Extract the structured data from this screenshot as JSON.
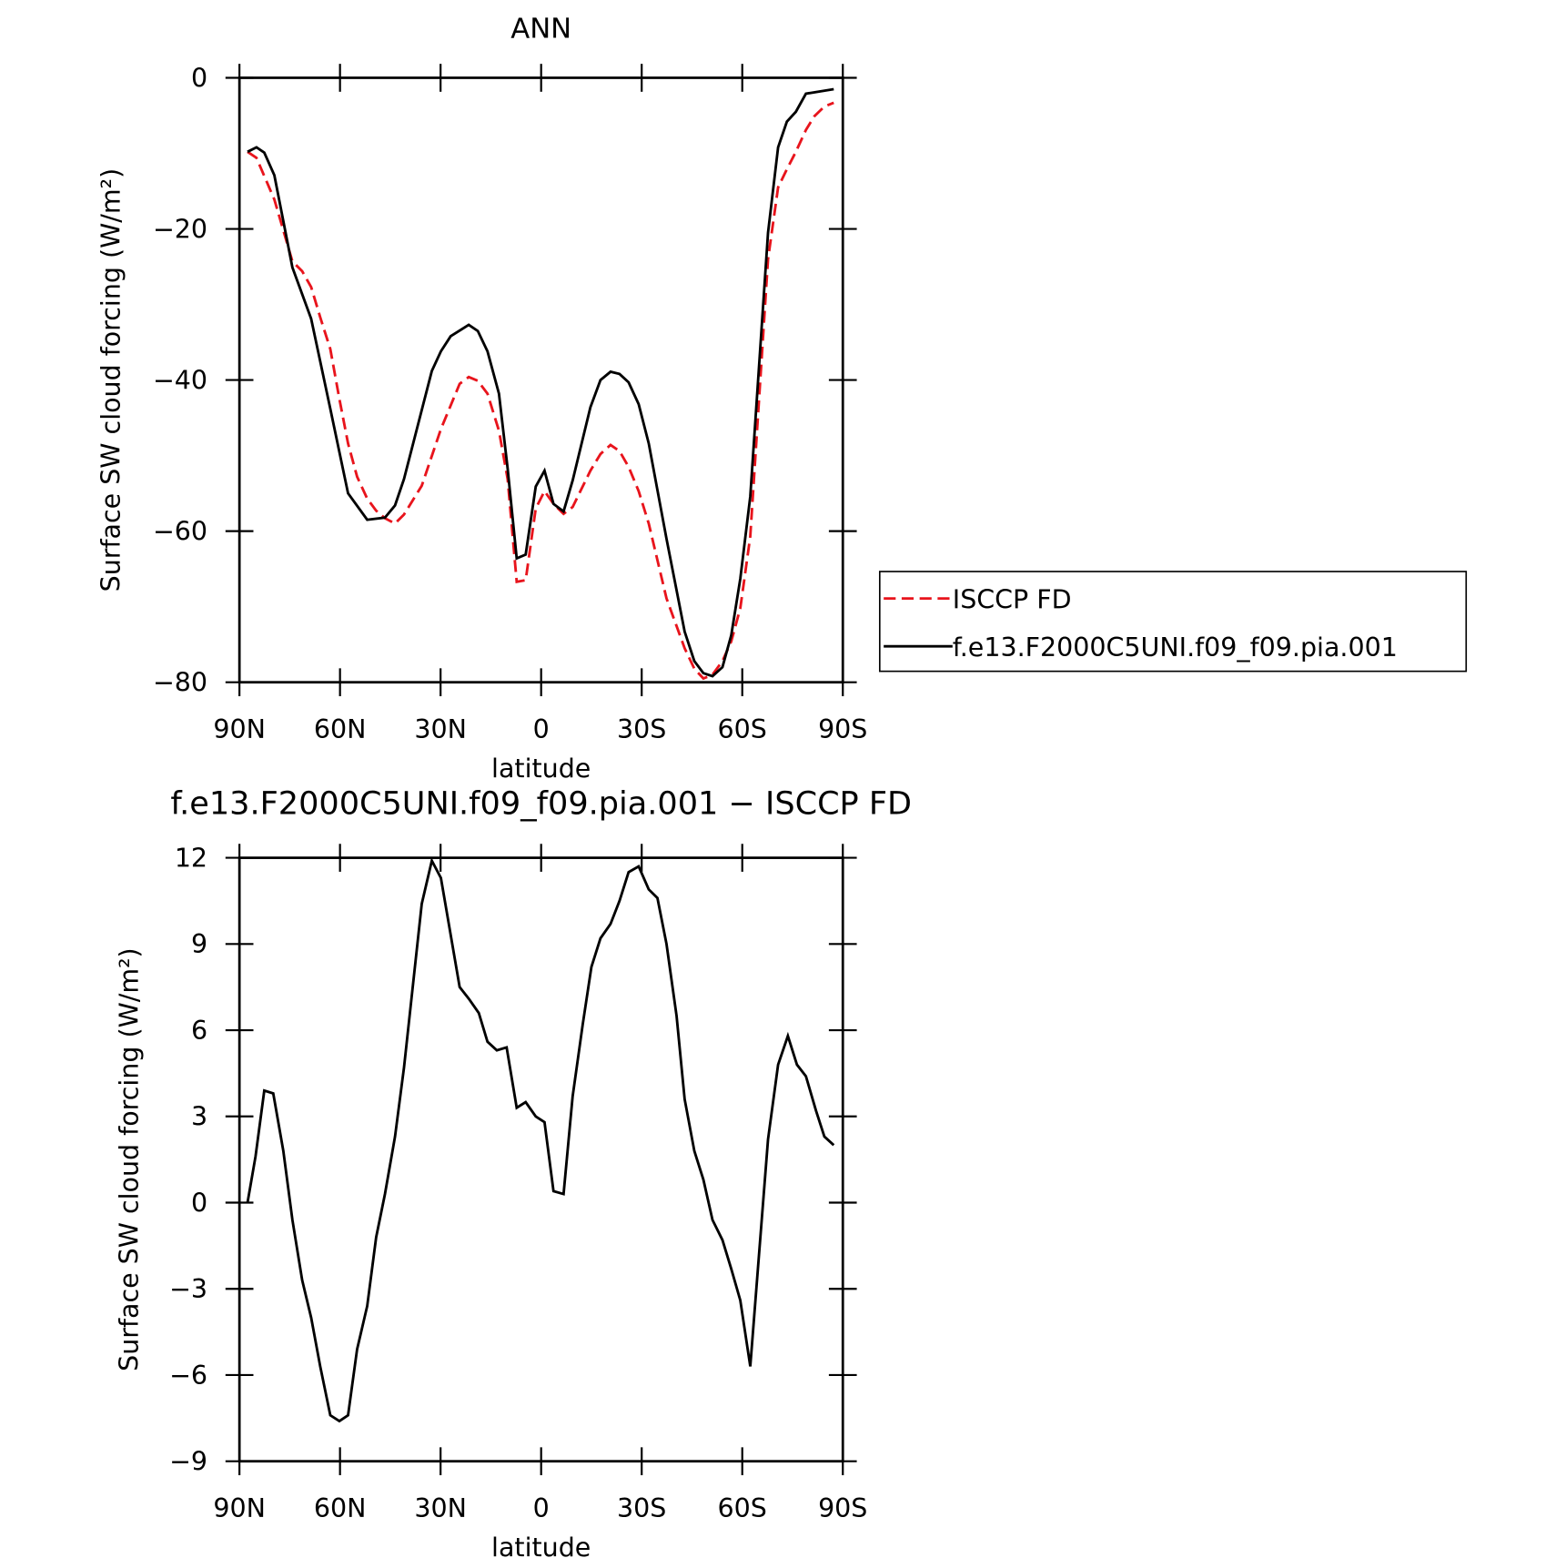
{
  "chart_data": [
    {
      "type": "line",
      "title": "ANN",
      "xlabel": "latitude",
      "ylabel": "Surface SW cloud forcing (W/m²)",
      "xlim": [
        90,
        -90
      ],
      "xticks": [
        {
          "value": 90,
          "label": "90N"
        },
        {
          "value": 60,
          "label": "60N"
        },
        {
          "value": 30,
          "label": "30N"
        },
        0,
        {
          "value": -30,
          "label": "30S"
        },
        {
          "value": -60,
          "label": "60S"
        },
        {
          "value": -90,
          "label": "90S"
        }
      ],
      "ylim": [
        -80,
        0
      ],
      "yticks": [
        0,
        {
          "value": -20,
          "label": "−20"
        },
        {
          "value": -40,
          "label": "−40"
        },
        {
          "value": -60,
          "label": "−60"
        },
        {
          "value": -80,
          "label": "−80"
        }
      ],
      "legend": "right",
      "series": [
        {
          "name": "ISCCP FD",
          "color": "#e8141c",
          "line_style": "dashed",
          "x": [
            87.6,
            84.9,
            79.6,
            74.2,
            71.3,
            68.6,
            65.9,
            62.9,
            60.2,
            57.6,
            54.9,
            51.9,
            49.2,
            46.6,
            43.6,
            40.9,
            35.6,
            29.9,
            24.3,
            21.6,
            18.9,
            16.0,
            12.6,
            10.0,
            7.3,
            4.6,
            1.6,
            -1.0,
            -3.7,
            -6.7,
            -9.4,
            -14.7,
            -17.7,
            -20.7,
            -23.4,
            -26.1,
            -29.1,
            -32.1,
            -37.4,
            -42.8,
            -45.7,
            -48.4,
            -51.1,
            -54.1,
            -56.7,
            -59.4,
            -62.4,
            -67.7,
            -70.7,
            -73.3,
            -76.0,
            -79.0,
            -81.5,
            -84.5,
            -87.3
          ],
          "values": [
            -9.8,
            -10.6,
            -16.1,
            -24.3,
            -25.6,
            -27.7,
            -31.7,
            -35.9,
            -42.5,
            -48.4,
            -52.8,
            -55.7,
            -57.3,
            -58.3,
            -59.0,
            -57.8,
            -54.0,
            -46.5,
            -40.5,
            -39.6,
            -40.1,
            -41.8,
            -46.7,
            -53.1,
            -66.7,
            -66.5,
            -57.0,
            -54.7,
            -56.4,
            -57.7,
            -56.8,
            -52.0,
            -49.8,
            -48.6,
            -49.4,
            -51.5,
            -54.7,
            -59.0,
            -68.9,
            -75.5,
            -78.2,
            -79.5,
            -79.0,
            -77.2,
            -74.6,
            -70.2,
            -60.7,
            -24.0,
            -14.5,
            -12.1,
            -9.8,
            -6.9,
            -5.1,
            -3.8,
            -3.3
          ]
        },
        {
          "name": "f.e13.F2000C5UNI.f09_f09.pia.001",
          "color": "#000000",
          "line_style": "solid",
          "x": [
            87.6,
            84.9,
            82.6,
            79.6,
            74.2,
            68.6,
            62.9,
            57.6,
            51.9,
            46.6,
            43.6,
            40.9,
            32.6,
            29.9,
            27.0,
            21.6,
            18.9,
            16.0,
            12.6,
            10.0,
            7.3,
            4.6,
            1.6,
            -1.0,
            -3.7,
            -6.7,
            -9.4,
            -14.7,
            -17.7,
            -20.7,
            -23.4,
            -26.1,
            -29.1,
            -32.1,
            -37.4,
            -42.8,
            -45.7,
            -48.4,
            -51.1,
            -54.1,
            -56.7,
            -59.4,
            -62.4,
            -67.7,
            -70.7,
            -73.3,
            -76.0,
            -79.0,
            -87.3
          ],
          "values": [
            -9.8,
            -9.2,
            -9.9,
            -12.9,
            -25.1,
            -31.9,
            -43.8,
            -55.0,
            -58.5,
            -58.2,
            -56.6,
            -53.1,
            -38.8,
            -36.2,
            -34.2,
            -32.7,
            -33.5,
            -36.2,
            -41.8,
            -51.7,
            -63.6,
            -63.1,
            -54.1,
            -52.0,
            -56.4,
            -57.4,
            -53.3,
            -43.6,
            -40.0,
            -38.9,
            -39.2,
            -40.3,
            -43.2,
            -48.4,
            -61.0,
            -73.3,
            -77.2,
            -78.8,
            -79.2,
            -78.0,
            -73.8,
            -66.3,
            -55.4,
            -20.5,
            -9.2,
            -5.8,
            -4.5,
            -2.1,
            -1.5
          ]
        }
      ]
    },
    {
      "type": "line",
      "title": "f.e13.F2000C5UNI.f09_f09.pia.001 − ISCCP FD",
      "xlabel": "latitude",
      "ylabel": "Surface SW cloud forcing (W/m²)",
      "xlim": [
        90,
        -90
      ],
      "xticks": [
        {
          "value": 90,
          "label": "90N"
        },
        {
          "value": 60,
          "label": "60N"
        },
        {
          "value": 30,
          "label": "30N"
        },
        0,
        {
          "value": -30,
          "label": "30S"
        },
        {
          "value": -60,
          "label": "60S"
        },
        {
          "value": -90,
          "label": "90S"
        }
      ],
      "ylim": [
        -9,
        12
      ],
      "yticks": [
        12,
        9,
        6,
        3,
        0,
        {
          "value": -3,
          "label": "−3"
        },
        {
          "value": -6,
          "label": "−6"
        },
        {
          "value": -9,
          "label": "−9"
        }
      ],
      "series": [
        {
          "color": "#000000",
          "line_style": "solid",
          "x": [
            87.6,
            85.2,
            82.6,
            79.9,
            76.9,
            74.2,
            71.3,
            68.6,
            65.9,
            62.9,
            60.2,
            57.6,
            54.9,
            51.9,
            49.2,
            46.6,
            43.6,
            40.9,
            35.6,
            32.6,
            29.9,
            24.3,
            21.6,
            18.6,
            16.0,
            13.2,
            10.3,
            7.3,
            4.6,
            1.6,
            -1.0,
            -3.7,
            -6.7,
            -9.4,
            -12.4,
            -15.0,
            -17.7,
            -20.7,
            -23.4,
            -26.1,
            -29.1,
            -32.1,
            -34.7,
            -37.4,
            -40.4,
            -42.8,
            -45.7,
            -48.4,
            -51.1,
            -54.1,
            -56.7,
            -59.4,
            -62.4,
            -67.7,
            -70.7,
            -73.6,
            -76.3,
            -79.0,
            -82.0,
            -84.5,
            -87.3
          ],
          "values": [
            0.0,
            1.6,
            3.9,
            3.8,
            1.8,
            -0.6,
            -2.7,
            -4.0,
            -5.7,
            -7.4,
            -7.6,
            -7.4,
            -5.1,
            -3.6,
            -1.2,
            0.3,
            2.3,
            4.7,
            10.4,
            11.9,
            11.3,
            7.5,
            7.1,
            6.6,
            5.6,
            5.3,
            5.4,
            3.3,
            3.5,
            3.0,
            2.8,
            0.4,
            0.3,
            3.7,
            6.2,
            8.2,
            9.2,
            9.7,
            10.5,
            11.5,
            11.7,
            10.9,
            10.6,
            9.0,
            6.5,
            3.6,
            1.8,
            0.8,
            -0.6,
            -1.3,
            -2.3,
            -3.4,
            -5.7,
            2.2,
            4.8,
            5.8,
            4.8,
            4.4,
            3.2,
            2.3,
            2.0
          ]
        }
      ]
    }
  ]
}
